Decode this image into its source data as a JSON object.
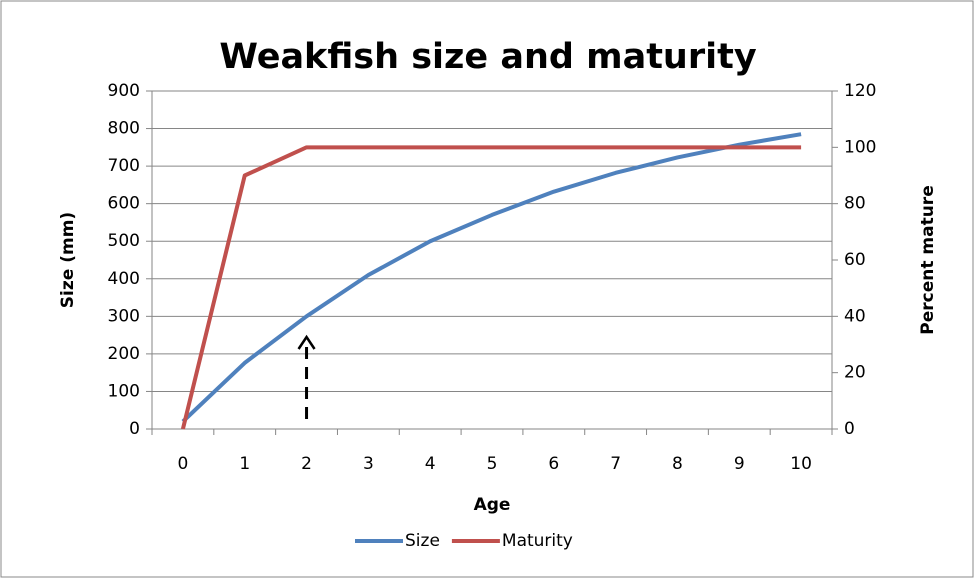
{
  "chart_data": {
    "type": "line",
    "title": "Weakfish size and maturity",
    "x_label": "Age",
    "y_label": "Size (mm)",
    "y2_label": "Percent mature",
    "categories": [
      "0",
      "1",
      "2",
      "3",
      "4",
      "5",
      "6",
      "7",
      "8",
      "9",
      "10"
    ],
    "series": [
      {
        "name": "Size",
        "color": "#4f81bd",
        "values": [
          20,
          176,
          300,
          410,
          500,
          570,
          632,
          682,
          723,
          757,
          785
        ]
      },
      {
        "name": "Maturity",
        "color": "#c0504d",
        "axis": "y2",
        "values": [
          0,
          90,
          100,
          100,
          100,
          100,
          100,
          100,
          100,
          100,
          100
        ]
      }
    ],
    "ylim": [
      0,
      900
    ],
    "yticks": [
      0,
      100,
      200,
      300,
      400,
      500,
      600,
      700,
      800,
      900
    ],
    "y2lim": [
      0,
      120
    ],
    "y2ticks": [
      0,
      20,
      40,
      60,
      80,
      100,
      120
    ],
    "grid": true,
    "legend": "bottom"
  }
}
